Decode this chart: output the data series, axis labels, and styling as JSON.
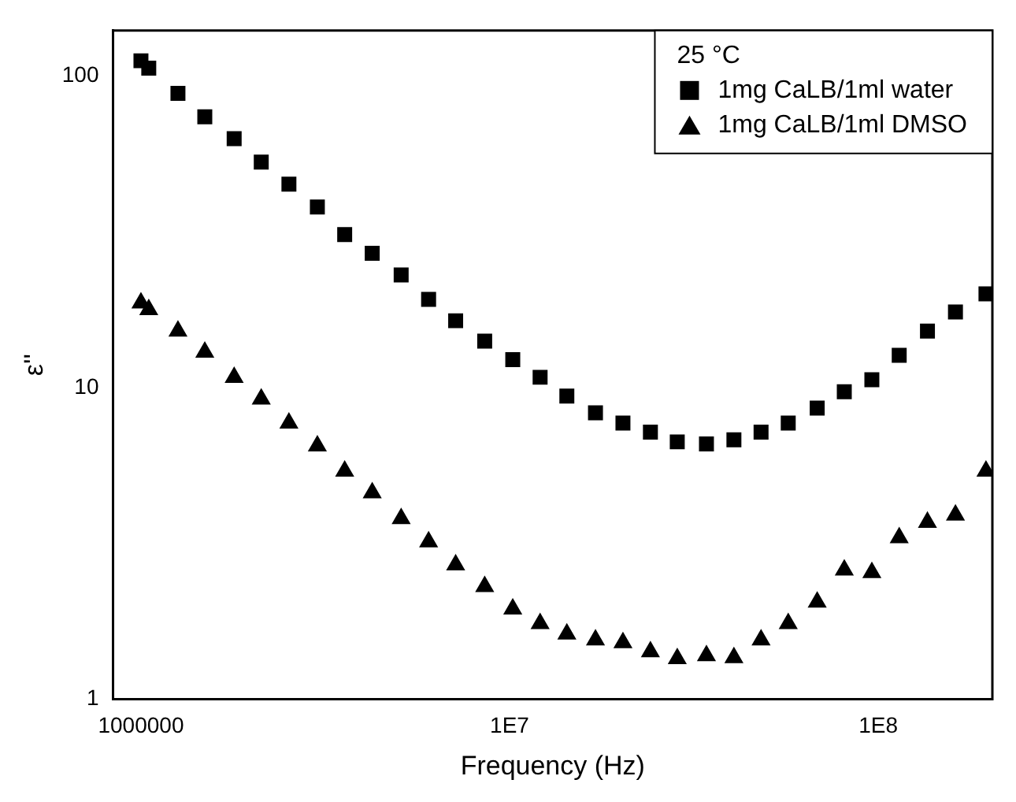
{
  "chart_data": {
    "type": "scatter",
    "xlabel": "Frequency (Hz)",
    "ylabel": "ε''",
    "legend_title": "25 °C",
    "log": "xy",
    "legend": "top right",
    "grid": false,
    "xlim": [
      840000,
      204000000
    ],
    "ylim": [
      1,
      140
    ],
    "xticks": [
      {
        "value": 1000000,
        "label": "1000000"
      },
      {
        "value": 10000000,
        "label": "1E7"
      },
      {
        "value": 100000000,
        "label": "1E8"
      }
    ],
    "yticks": [
      1,
      10,
      100
    ],
    "x": [
      1000000,
      1050000,
      1260000,
      1490000,
      1790000,
      2120000,
      2520000,
      3010000,
      3570000,
      4240000,
      5080000,
      6030000,
      7140000,
      8560000,
      10200000,
      12100000,
      14300000,
      17100000,
      20300000,
      24100000,
      28500000,
      34200000,
      40600000,
      48100000,
      57000000,
      68300000,
      80900000,
      96100000,
      114000000,
      136000000,
      162000000,
      196000000
    ],
    "series": [
      {
        "name": "1mg CaLB/1ml water",
        "color": "#000000",
        "marker": "square",
        "values": [
          112,
          106,
          88,
          74,
          63,
          53,
          45,
          38,
          31,
          27,
          23,
          19.2,
          16.4,
          14.1,
          12.3,
          10.8,
          9.4,
          8.3,
          7.7,
          7.2,
          6.7,
          6.6,
          6.8,
          7.2,
          7.7,
          8.6,
          9.7,
          10.6,
          12.7,
          15.2,
          17.5,
          20
        ]
      },
      {
        "name": "1mg CaLB/1ml DMSO",
        "color": "#000000",
        "marker": "triangle",
        "values": [
          18.7,
          17.8,
          15.2,
          13,
          10.8,
          9.2,
          7.7,
          6.5,
          5.4,
          4.6,
          3.8,
          3.2,
          2.7,
          2.3,
          1.95,
          1.75,
          1.62,
          1.55,
          1.52,
          1.42,
          1.35,
          1.38,
          1.36,
          1.55,
          1.75,
          2.05,
          2.6,
          2.55,
          3.3,
          3.7,
          3.9,
          5.4
        ]
      }
    ]
  }
}
